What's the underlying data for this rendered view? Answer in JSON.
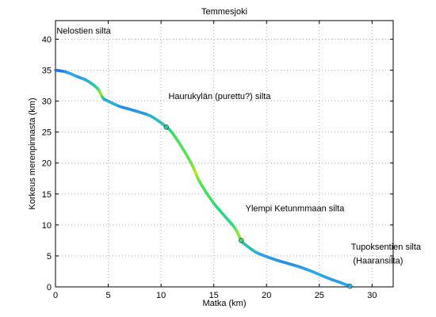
{
  "chart_data": {
    "type": "line",
    "title": "Temmesjoki",
    "xlabel": "Matka (km)",
    "ylabel": "Korkeus merenpinnasta (km)",
    "xlim": [
      0,
      32
    ],
    "ylim": [
      0,
      43
    ],
    "xticks": [
      0,
      5,
      10,
      15,
      20,
      25,
      30
    ],
    "yticks": [
      0,
      5,
      10,
      15,
      20,
      25,
      30,
      35,
      40
    ],
    "grid": true,
    "series": [
      {
        "x": [
          0,
          1,
          2,
          3,
          4,
          4.5,
          5,
          6,
          7,
          8,
          9,
          10,
          10.5,
          11,
          12,
          13,
          13.5,
          14,
          15,
          16,
          17,
          17.6,
          18,
          19,
          20,
          21,
          22,
          23,
          24,
          25,
          26,
          27,
          27.9
        ],
        "y": [
          35,
          34.7,
          34,
          33.3,
          32,
          30.5,
          30,
          29.2,
          28.7,
          28.2,
          27.6,
          26.5,
          25.8,
          25,
          22.5,
          19.5,
          17.5,
          16,
          13.5,
          11.5,
          9.5,
          7.5,
          6.8,
          5.6,
          4.9,
          4.3,
          3.8,
          3.3,
          2.7,
          2,
          1.3,
          0.7,
          0.1
        ]
      }
    ],
    "color_stops": [
      "#1a3fd8",
      "#2aa8e8",
      "#2ee06a",
      "#b4e81a"
    ],
    "markers": [
      {
        "x": 10.5,
        "y": 25.8
      },
      {
        "x": 17.6,
        "y": 7.5
      },
      {
        "x": 27.9,
        "y": 0.1
      }
    ],
    "annotations": [
      {
        "text": "Nelostien silta",
        "x": 0.1,
        "y": 40.9
      },
      {
        "text": "Haurukylän (purettu?) silta",
        "x": 10.7,
        "y": 30.3
      },
      {
        "text": "Ylempi Ketunmmaan silta",
        "x": 18.0,
        "y": 12.2
      },
      {
        "text": "Tupoksentien silta",
        "x": 28.0,
        "y": 6.0
      },
      {
        "text": "(Haaransilta)",
        "x": 28.2,
        "y": 3.8
      }
    ]
  }
}
